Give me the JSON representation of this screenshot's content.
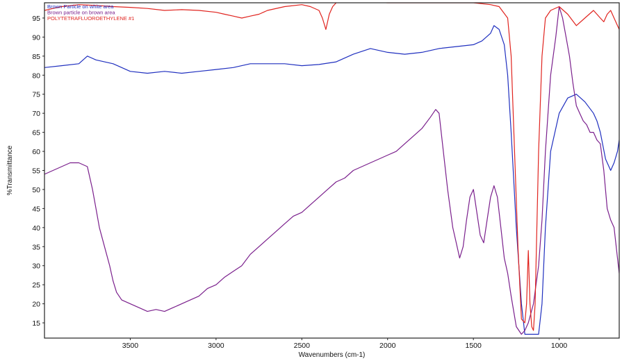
{
  "chart_data": {
    "type": "line",
    "title": "",
    "xlabel": "Wavenumbers (cm-1)",
    "ylabel": "%Transmittance",
    "xlim": [
      4000,
      650
    ],
    "ylim": [
      11,
      99
    ],
    "x_reversed": true,
    "grid": false,
    "legend_position": "top-left",
    "xticks": [
      3500,
      3000,
      2500,
      2000,
      1500,
      1000
    ],
    "yticks": [
      15,
      20,
      25,
      30,
      35,
      40,
      45,
      50,
      55,
      60,
      65,
      70,
      75,
      80,
      85,
      90,
      95
    ],
    "series": [
      {
        "name": "Brown Particle on white area",
        "color": "#1f2fbf",
        "x": [
          4000,
          3900,
          3800,
          3750,
          3700,
          3650,
          3600,
          3550,
          3500,
          3400,
          3300,
          3200,
          3100,
          3000,
          2900,
          2800,
          2700,
          2600,
          2500,
          2400,
          2300,
          2200,
          2100,
          2000,
          1900,
          1800,
          1700,
          1600,
          1500,
          1450,
          1400,
          1380,
          1350,
          1320,
          1300,
          1280,
          1250,
          1220,
          1200,
          1180,
          1150,
          1120,
          1100,
          1080,
          1050,
          1000,
          950,
          900,
          850,
          800,
          780,
          760,
          730,
          700,
          680,
          660,
          650
        ],
        "y": [
          82,
          82.5,
          83,
          85,
          84,
          83.5,
          83,
          82,
          81,
          80.5,
          81,
          80.5,
          81,
          81.5,
          82,
          83,
          83,
          83,
          82.5,
          82.8,
          83.5,
          85.5,
          87,
          86,
          85.5,
          86,
          87,
          87.5,
          88,
          89,
          91,
          93,
          92,
          88,
          80,
          65,
          40,
          20,
          12,
          12,
          12,
          12,
          20,
          40,
          60,
          70,
          74,
          75,
          73,
          70,
          68,
          65,
          58,
          55,
          57,
          60,
          63
        ]
      },
      {
        "name": "Brown particle on brown area",
        "color": "#7a1f8c",
        "x": [
          4000,
          3950,
          3900,
          3850,
          3800,
          3750,
          3720,
          3700,
          3680,
          3650,
          3620,
          3600,
          3580,
          3550,
          3500,
          3450,
          3400,
          3350,
          3300,
          3250,
          3200,
          3150,
          3100,
          3050,
          3000,
          2950,
          2900,
          2850,
          2800,
          2750,
          2700,
          2650,
          2600,
          2550,
          2500,
          2450,
          2400,
          2350,
          2300,
          2250,
          2200,
          2150,
          2100,
          2050,
          2000,
          1950,
          1900,
          1850,
          1800,
          1750,
          1720,
          1700,
          1680,
          1650,
          1620,
          1600,
          1580,
          1560,
          1540,
          1520,
          1500,
          1480,
          1460,
          1440,
          1420,
          1400,
          1380,
          1360,
          1340,
          1320,
          1300,
          1280,
          1250,
          1220,
          1200,
          1180,
          1150,
          1120,
          1100,
          1080,
          1050,
          1020,
          1000,
          980,
          960,
          940,
          920,
          900,
          880,
          860,
          840,
          820,
          800,
          780,
          760,
          740,
          720,
          700,
          680,
          660,
          650
        ],
        "y": [
          54,
          55,
          56,
          57,
          57,
          56,
          50,
          45,
          40,
          35,
          30,
          26,
          23,
          21,
          20,
          19,
          18,
          18.5,
          18,
          19,
          20,
          21,
          22,
          24,
          25,
          27,
          28.5,
          30,
          33,
          35,
          37,
          39,
          41,
          43,
          44,
          46,
          48,
          50,
          52,
          53,
          55,
          56,
          57,
          58,
          59,
          60,
          62,
          64,
          66,
          69,
          71,
          70,
          62,
          50,
          40,
          36,
          32,
          35,
          42,
          48,
          50,
          44,
          38,
          36,
          42,
          48,
          51,
          48,
          40,
          32,
          28,
          22,
          14,
          12,
          13,
          15,
          20,
          30,
          42,
          60,
          80,
          90,
          98,
          95,
          90,
          85,
          78,
          72,
          70,
          68,
          67,
          65,
          65,
          63,
          62,
          55,
          45,
          42,
          40,
          32,
          28
        ]
      },
      {
        "name": "POLYTETRAFLUOROETHYLENE #1",
        "color": "#e0231e",
        "x": [
          4000,
          3950,
          3900,
          3800,
          3700,
          3600,
          3500,
          3400,
          3300,
          3200,
          3100,
          3000,
          2950,
          2900,
          2850,
          2800,
          2750,
          2700,
          2600,
          2500,
          2450,
          2400,
          2380,
          2360,
          2340,
          2320,
          2300,
          2250,
          2200,
          2150,
          2100,
          2000,
          1900,
          1800,
          1700,
          1600,
          1500,
          1400,
          1350,
          1300,
          1280,
          1260,
          1240,
          1220,
          1200,
          1190,
          1180,
          1170,
          1160,
          1150,
          1140,
          1120,
          1100,
          1080,
          1050,
          1000,
          950,
          900,
          850,
          800,
          780,
          760,
          740,
          720,
          700,
          680,
          660,
          650
        ],
        "y": [
          97,
          97.5,
          98,
          98.5,
          98.3,
          98,
          97.8,
          97.5,
          97,
          97.2,
          97,
          96.5,
          96,
          95.5,
          95,
          95.5,
          96,
          97,
          98,
          98.5,
          98,
          97,
          95,
          92,
          96,
          98,
          99,
          99.5,
          99.5,
          99.3,
          99.2,
          99,
          99,
          99,
          99,
          99,
          99,
          98.5,
          98,
          95,
          85,
          60,
          35,
          16,
          15,
          20,
          34,
          20,
          14,
          13,
          20,
          60,
          85,
          95,
          97,
          98,
          96,
          93,
          95,
          97,
          96,
          95,
          94,
          96,
          97,
          95,
          93,
          92
        ]
      }
    ]
  }
}
